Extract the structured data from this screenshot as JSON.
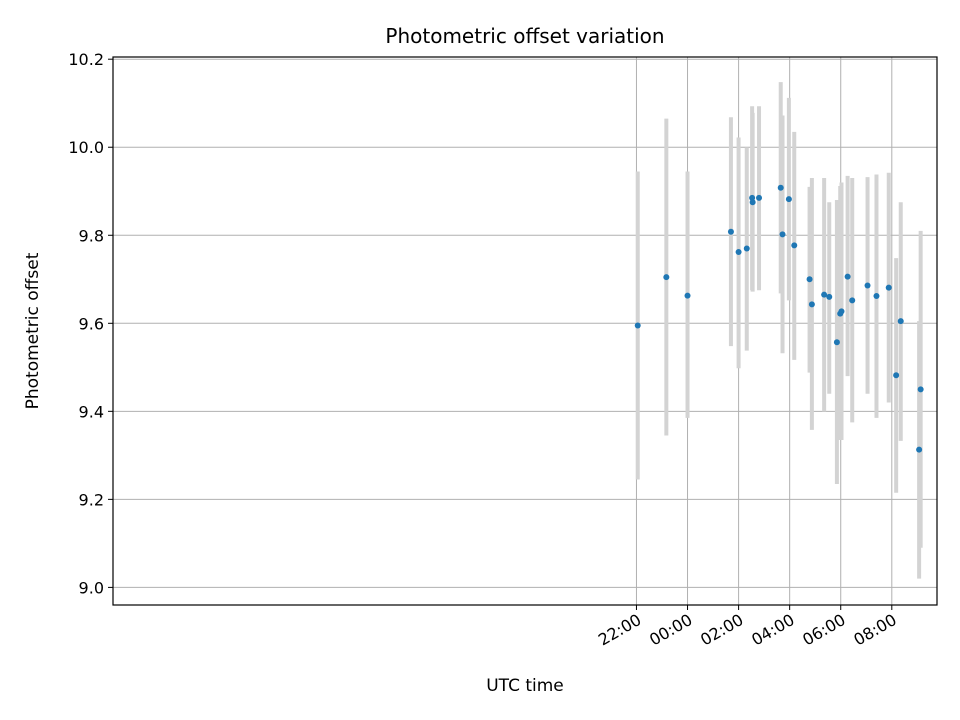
{
  "chart_data": {
    "type": "scatter",
    "title": "Photometric offset variation",
    "xlabel": "UTC time",
    "ylabel": "Photometric offset",
    "x_unit": "hours relative to 00:00 UTC",
    "xlim": [
      -22.5,
      9.77
    ],
    "ylim": [
      8.96,
      10.205
    ],
    "grid": true,
    "xticks": [
      {
        "value": -2,
        "label": "22:00"
      },
      {
        "value": 0,
        "label": "00:00"
      },
      {
        "value": 2,
        "label": "02:00"
      },
      {
        "value": 4,
        "label": "04:00"
      },
      {
        "value": 6,
        "label": "06:00"
      },
      {
        "value": 8,
        "label": "08:00"
      }
    ],
    "yticks": [
      9.0,
      9.2,
      9.4,
      9.6,
      9.8,
      10.0,
      10.2
    ],
    "point_color": "#1f77b4",
    "errorbar_color": "#d3d3d3",
    "points": [
      {
        "x": -1.95,
        "y": 9.595,
        "lo": 9.245,
        "hi": 9.945
      },
      {
        "x": -0.83,
        "y": 9.705,
        "lo": 9.345,
        "hi": 10.065
      },
      {
        "x": 0.0,
        "y": 9.663,
        "lo": 9.385,
        "hi": 9.945
      },
      {
        "x": 1.7,
        "y": 9.808,
        "lo": 9.548,
        "hi": 10.068
      },
      {
        "x": 2.0,
        "y": 9.762,
        "lo": 9.498,
        "hi": 10.022
      },
      {
        "x": 2.32,
        "y": 9.77,
        "lo": 9.538,
        "hi": 10.0
      },
      {
        "x": 2.53,
        "y": 9.885,
        "lo": 9.675,
        "hi": 10.093
      },
      {
        "x": 2.55,
        "y": 9.875,
        "lo": 9.672,
        "hi": 10.078
      },
      {
        "x": 2.8,
        "y": 9.885,
        "lo": 9.675,
        "hi": 10.093
      },
      {
        "x": 3.65,
        "y": 9.908,
        "lo": 9.668,
        "hi": 10.148
      },
      {
        "x": 3.72,
        "y": 9.802,
        "lo": 9.532,
        "hi": 10.072
      },
      {
        "x": 3.97,
        "y": 9.882,
        "lo": 9.652,
        "hi": 10.112
      },
      {
        "x": 4.18,
        "y": 9.777,
        "lo": 9.517,
        "hi": 10.035
      },
      {
        "x": 4.78,
        "y": 9.7,
        "lo": 9.488,
        "hi": 9.91
      },
      {
        "x": 4.87,
        "y": 9.643,
        "lo": 9.358,
        "hi": 9.93
      },
      {
        "x": 5.35,
        "y": 9.665,
        "lo": 9.4,
        "hi": 9.93
      },
      {
        "x": 5.55,
        "y": 9.66,
        "lo": 9.44,
        "hi": 9.875
      },
      {
        "x": 5.85,
        "y": 9.557,
        "lo": 9.235,
        "hi": 9.88
      },
      {
        "x": 5.98,
        "y": 9.622,
        "lo": 9.335,
        "hi": 9.912
      },
      {
        "x": 6.03,
        "y": 9.627,
        "lo": 9.335,
        "hi": 9.92
      },
      {
        "x": 6.27,
        "y": 9.706,
        "lo": 9.48,
        "hi": 9.935
      },
      {
        "x": 6.45,
        "y": 9.652,
        "lo": 9.375,
        "hi": 9.93
      },
      {
        "x": 7.05,
        "y": 9.686,
        "lo": 9.44,
        "hi": 9.932
      },
      {
        "x": 7.4,
        "y": 9.662,
        "lo": 9.385,
        "hi": 9.938
      },
      {
        "x": 7.88,
        "y": 9.681,
        "lo": 9.42,
        "hi": 9.942
      },
      {
        "x": 8.17,
        "y": 9.482,
        "lo": 9.215,
        "hi": 9.748
      },
      {
        "x": 8.35,
        "y": 9.605,
        "lo": 9.333,
        "hi": 9.875
      },
      {
        "x": 9.07,
        "y": 9.313,
        "lo": 9.02,
        "hi": 9.605
      },
      {
        "x": 9.13,
        "y": 9.45,
        "lo": 9.09,
        "hi": 9.81
      }
    ]
  }
}
